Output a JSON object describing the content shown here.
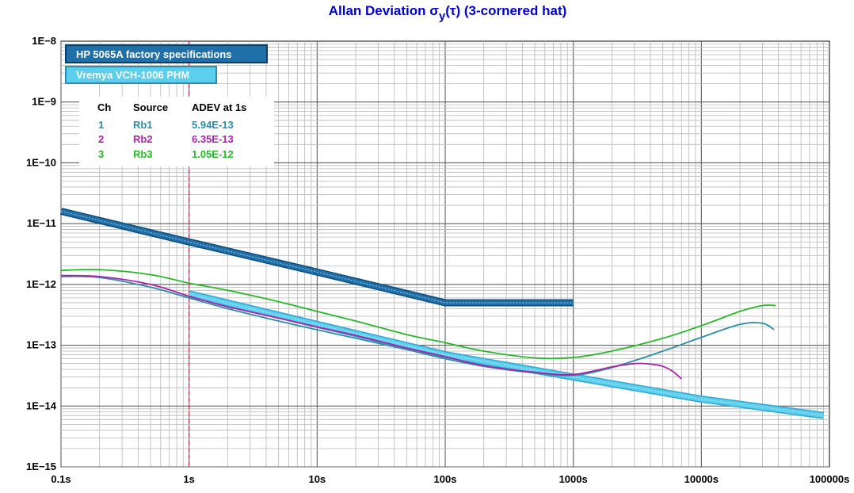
{
  "title": {
    "main": "Allan Deviation σ",
    "sub": "y",
    "rest": "(τ) (3-cornered hat)"
  },
  "chart_data": {
    "type": "line",
    "x_scale": "log",
    "y_scale": "log",
    "xlim": [
      0.1,
      100000
    ],
    "ylim": [
      1e-15,
      1e-08
    ],
    "grid": true,
    "x_tick_labels": [
      {
        "value": 0.1,
        "label": "0.1s"
      },
      {
        "value": 1,
        "label": "1s"
      },
      {
        "value": 10,
        "label": "10s"
      },
      {
        "value": 100,
        "label": "100s"
      },
      {
        "value": 1000,
        "label": "1000s"
      },
      {
        "value": 10000,
        "label": "10000s"
      },
      {
        "value": 100000,
        "label": "100000s"
      }
    ],
    "y_tick_labels": [
      {
        "value": 1e-08,
        "label": "1E−8"
      },
      {
        "value": 1e-09,
        "label": "1E−9"
      },
      {
        "value": 1e-10,
        "label": "1E−10"
      },
      {
        "value": 1e-11,
        "label": "1E−11"
      },
      {
        "value": 1e-12,
        "label": "1E−12"
      },
      {
        "value": 1e-13,
        "label": "1E−13"
      },
      {
        "value": 1e-14,
        "label": "1E−14"
      },
      {
        "value": 1e-15,
        "label": "1E−15"
      }
    ],
    "reference_line_x": 1,
    "reference_curves": [
      {
        "name": "HP 5065A factory specifications",
        "color": "#1f6fa8",
        "x": [
          0.1,
          1,
          10,
          100,
          1000
        ],
        "y": [
          1.6e-11,
          5e-12,
          1.6e-12,
          5e-13,
          5e-13
        ]
      },
      {
        "name": "Vremya VCH-1006 PHM",
        "color": "#5ccfee",
        "x": [
          1,
          10,
          100,
          1000,
          10000,
          90000
        ],
        "y": [
          7e-13,
          2.2e-13,
          7e-14,
          3e-14,
          1.3e-14,
          7e-15
        ]
      }
    ],
    "series": [
      {
        "channel": "1",
        "name": "Rb1",
        "adev_1s": "5.94E-13",
        "color": "#2a8fa5",
        "x": [
          0.1,
          0.2,
          0.5,
          1,
          2,
          5,
          10,
          20,
          50,
          100,
          200,
          500,
          1000,
          2000,
          5000,
          10000,
          20000,
          30000,
          37000
        ],
        "y": [
          1.35e-12,
          1.3e-12,
          9e-13,
          6e-13,
          4e-13,
          2.5e-13,
          1.8e-13,
          1.3e-13,
          8.5e-14,
          6e-14,
          4.5e-14,
          3.5e-14,
          3.2e-14,
          4.3e-14,
          8e-14,
          1.35e-13,
          2.2e-13,
          2.3e-13,
          1.8e-13
        ]
      },
      {
        "channel": "2",
        "name": "Rb2",
        "adev_1s": "6.35E-13",
        "color": "#aa22aa",
        "x": [
          0.1,
          0.2,
          0.5,
          1,
          2,
          5,
          10,
          20,
          50,
          100,
          200,
          500,
          1000,
          2000,
          3000,
          4000,
          5000,
          6000,
          7000
        ],
        "y": [
          1.4e-12,
          1.35e-12,
          1e-12,
          6.4e-13,
          4.3e-13,
          2.8e-13,
          2e-13,
          1.45e-13,
          9e-14,
          6.5e-14,
          4.6e-14,
          3.6e-14,
          3.3e-14,
          4.4e-14,
          5e-14,
          4.9e-14,
          4.5e-14,
          3.7e-14,
          2.8e-14
        ]
      },
      {
        "channel": "3",
        "name": "Rb3",
        "adev_1s": "1.05E-12",
        "color": "#2ab82a",
        "x": [
          0.1,
          0.2,
          0.5,
          1,
          2,
          5,
          10,
          20,
          50,
          100,
          200,
          500,
          1000,
          2000,
          5000,
          10000,
          20000,
          30000,
          38000
        ],
        "y": [
          1.7e-12,
          1.75e-12,
          1.45e-12,
          1.05e-12,
          8e-13,
          5.2e-13,
          3.6e-13,
          2.5e-13,
          1.5e-13,
          1.1e-13,
          8e-14,
          6.2e-14,
          6.3e-14,
          8e-14,
          1.3e-13,
          2.1e-13,
          3.6e-13,
          4.5e-13,
          4.5e-13
        ]
      }
    ],
    "legend_boxes": [
      {
        "label": "HP 5065A factory specifications",
        "bg": "#1f6fa8",
        "border": "#0a3d66"
      },
      {
        "label": "Vremya VCH-1006 PHM",
        "bg": "#5ccfee",
        "border": "#2a8fb5"
      }
    ],
    "table": {
      "headers": [
        "Ch",
        "Source",
        "ADEV at 1s"
      ]
    }
  }
}
